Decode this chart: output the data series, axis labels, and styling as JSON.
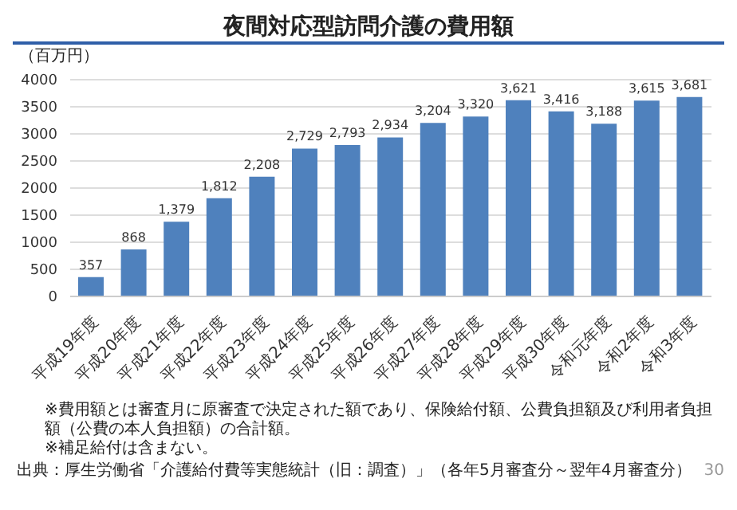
{
  "chart_data": {
    "type": "bar",
    "title": "夜間対応型訪問介護の費用額",
    "ylabel": "（百万円）",
    "categories": [
      "平成19年度",
      "平成20年度",
      "平成21年度",
      "平成22年度",
      "平成23年度",
      "平成24年度",
      "平成25年度",
      "平成26年度",
      "平成27年度",
      "平成28年度",
      "平成29年度",
      "平成30年度",
      "令和元年度",
      "令和2年度",
      "令和3年度"
    ],
    "values": [
      357,
      868,
      1379,
      1812,
      2208,
      2729,
      2793,
      2934,
      3204,
      3320,
      3621,
      3416,
      3188,
      3615,
      3681
    ],
    "value_labels": [
      "357",
      "868",
      "1,379",
      "1,812",
      "2,208",
      "2,729",
      "2,793",
      "2,934",
      "3,204",
      "3,320",
      "3,621",
      "3,416",
      "3,188",
      "3,615",
      "3,681"
    ],
    "color": "#4f81bd",
    "ylim": [
      0,
      4000
    ],
    "yticks": [
      0,
      500,
      1000,
      1500,
      2000,
      2500,
      3000,
      3500,
      4000
    ],
    "grid": "y",
    "annotations": [
      "※費用額とは審査月に原審査で決定された額であり、保険給付額、公費負担額及び利用者負担額（公費の本人負担額）の合計額。",
      "※補足給付は含まない。",
      "出典：厚生労働省「介護給付費等実態統計（旧：調査）」（各年5月審査分～翌年4月審査分）",
      "30"
    ]
  }
}
